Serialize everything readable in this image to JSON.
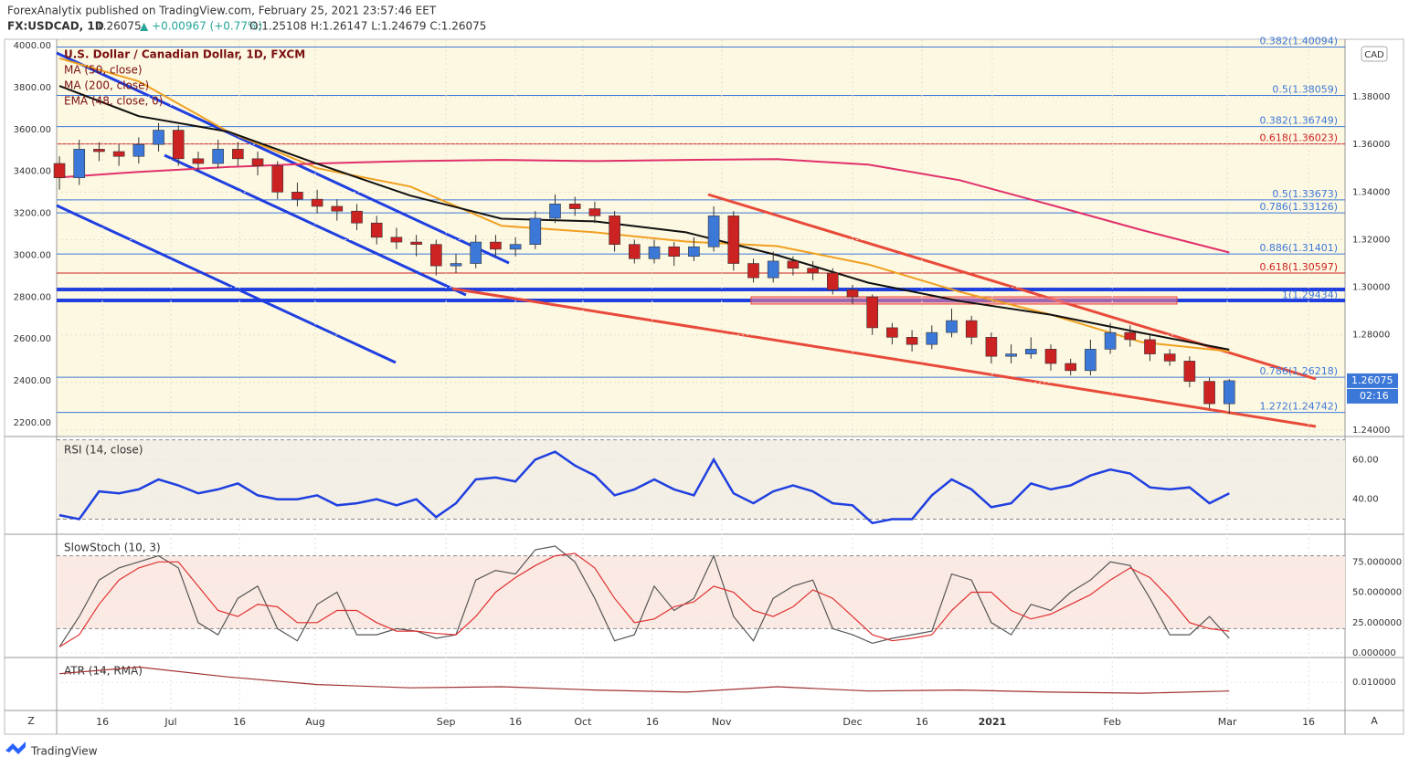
{
  "header": {
    "publisher": "ForexAnalytix published on TradingView.com, February 25, 2021 23:57:46 EET",
    "symbol": "FX:USDCAD, 1D",
    "last": "1.26075",
    "change": "▲ +0.00967 (+0.77%)",
    "ohlc": "O:1.25108 H:1.26147 L:1.24679 C:1.26075"
  },
  "price_panel": {
    "type": "candlestick",
    "title": "U.S. Dollar / Canadian Dollar, 1D, FXCM",
    "currency": "CAD",
    "last_label": "1.26075",
    "countdown": "02:16",
    "xlim": [
      -0.14,
      64.84
    ],
    "xticks": [
      {
        "value": 2.17,
        "label": "16"
      },
      {
        "value": 5.62,
        "label": "Jul"
      },
      {
        "value": 9.08,
        "label": "16"
      },
      {
        "value": 12.9,
        "label": "Aug"
      },
      {
        "value": 19.5,
        "label": "Sep"
      },
      {
        "value": 23.0,
        "label": "16"
      },
      {
        "value": 26.4,
        "label": "Oct"
      },
      {
        "value": 29.9,
        "label": "16"
      },
      {
        "value": 33.4,
        "label": "Nov"
      },
      {
        "value": 40.0,
        "label": "Dec"
      },
      {
        "value": 43.5,
        "label": "16"
      },
      {
        "value": 47.05,
        "label": "2021"
      },
      {
        "value": 53.1,
        "label": "Feb"
      },
      {
        "value": 58.9,
        "label": "Mar"
      },
      {
        "value": 63.0,
        "label": "16"
      }
    ],
    "ylim": [
      1.2377,
      1.4038
    ],
    "yticks": [
      {
        "value": 1.24,
        "label": "1.24000"
      },
      {
        "value": 1.26,
        "label": "1.26000"
      },
      {
        "value": 1.28,
        "label": "1.28000"
      },
      {
        "value": 1.3,
        "label": "1.30000"
      },
      {
        "value": 1.32,
        "label": "1.32000"
      },
      {
        "value": 1.34,
        "label": "1.34000"
      },
      {
        "value": 1.36,
        "label": "1.36000"
      },
      {
        "value": 1.38,
        "label": "1.38000"
      }
    ],
    "y2lim": [
      2139,
      4026
    ],
    "y2ticks": [
      {
        "value": 2200,
        "label": "2200.00"
      },
      {
        "value": 2400,
        "label": "2400.00"
      },
      {
        "value": 2600,
        "label": "2600.00"
      },
      {
        "value": 2800,
        "label": "2800.00"
      },
      {
        "value": 3000,
        "label": "3000.00"
      },
      {
        "value": 3200,
        "label": "3200.00"
      },
      {
        "value": 3400,
        "label": "3400.00"
      },
      {
        "value": 3600,
        "label": "3600.00"
      },
      {
        "value": 3800,
        "label": "3800.00"
      },
      {
        "value": 4000,
        "label": "4000.00"
      }
    ],
    "up_color": "#3c78d8",
    "down_color": "#cc2222",
    "open": [
      1.352,
      1.346,
      1.358,
      1.357,
      1.355,
      1.36,
      1.366,
      1.354,
      1.352,
      1.358,
      1.354,
      1.351,
      1.34,
      1.337,
      1.334,
      1.332,
      1.327,
      1.321,
      1.319,
      1.318,
      1.309,
      1.31,
      1.319,
      1.316,
      1.318,
      1.329,
      1.335,
      1.333,
      1.33,
      1.318,
      1.312,
      1.317,
      1.313,
      1.317,
      1.33,
      1.31,
      1.304,
      1.311,
      1.308,
      1.306,
      1.299,
      1.296,
      1.283,
      1.279,
      1.276,
      1.281,
      1.286,
      1.279,
      1.271,
      1.272,
      1.274,
      1.268,
      1.265,
      1.274,
      1.281,
      1.278,
      1.272,
      1.269,
      1.2605,
      1.25108
    ],
    "high": [
      1.355,
      1.362,
      1.361,
      1.36,
      1.363,
      1.369,
      1.368,
      1.357,
      1.362,
      1.361,
      1.357,
      1.353,
      1.344,
      1.341,
      1.337,
      1.335,
      1.33,
      1.325,
      1.322,
      1.32,
      1.314,
      1.322,
      1.322,
      1.321,
      1.332,
      1.339,
      1.338,
      1.336,
      1.332,
      1.32,
      1.32,
      1.319,
      1.321,
      1.334,
      1.332,
      1.312,
      1.315,
      1.313,
      1.311,
      1.308,
      1.301,
      1.297,
      1.285,
      1.282,
      1.284,
      1.291,
      1.288,
      1.281,
      1.276,
      1.279,
      1.276,
      1.27,
      1.278,
      1.285,
      1.284,
      1.28,
      1.274,
      1.271,
      1.262,
      1.26147
    ],
    "low": [
      1.341,
      1.343,
      1.353,
      1.351,
      1.352,
      1.357,
      1.351,
      1.349,
      1.35,
      1.351,
      1.347,
      1.337,
      1.334,
      1.331,
      1.328,
      1.324,
      1.318,
      1.316,
      1.313,
      1.305,
      1.306,
      1.308,
      1.313,
      1.313,
      1.316,
      1.327,
      1.33,
      1.327,
      1.315,
      1.31,
      1.31,
      1.309,
      1.311,
      1.315,
      1.307,
      1.302,
      1.302,
      1.305,
      1.303,
      1.297,
      1.293,
      1.28,
      1.276,
      1.273,
      1.274,
      1.279,
      1.276,
      1.268,
      1.268,
      1.27,
      1.265,
      1.263,
      1.263,
      1.272,
      1.275,
      1.269,
      1.267,
      1.258,
      1.249,
      1.24679
    ],
    "close": [
      1.346,
      1.358,
      1.357,
      1.355,
      1.36,
      1.366,
      1.354,
      1.352,
      1.358,
      1.354,
      1.351,
      1.34,
      1.337,
      1.334,
      1.332,
      1.327,
      1.321,
      1.319,
      1.318,
      1.309,
      1.31,
      1.319,
      1.316,
      1.318,
      1.329,
      1.335,
      1.333,
      1.33,
      1.318,
      1.312,
      1.317,
      1.313,
      1.317,
      1.33,
      1.31,
      1.304,
      1.311,
      1.308,
      1.306,
      1.299,
      1.296,
      1.283,
      1.279,
      1.276,
      1.281,
      1.286,
      1.279,
      1.271,
      1.272,
      1.274,
      1.268,
      1.265,
      1.274,
      1.281,
      1.278,
      1.272,
      1.269,
      1.2605,
      1.2511,
      1.26075
    ],
    "line_x": [
      0,
      4,
      8.5,
      13,
      17.7,
      22.3,
      27,
      31.6,
      36.2,
      40.8,
      45.4,
      50,
      54.6,
      59
    ],
    "lines": [
      {
        "name": "MA (50, close)",
        "color": "#f0a020",
        "values": [
          1.3962,
          1.3865,
          1.3654,
          1.35,
          1.3423,
          1.3258,
          1.3231,
          1.3192,
          1.3173,
          1.3096,
          1.2981,
          1.2885,
          1.2769,
          1.2731
        ]
      },
      {
        "name": "MA (200, close)",
        "color": "#e0306a",
        "values": [
          1.3462,
          1.3485,
          1.3505,
          1.352,
          1.353,
          1.3535,
          1.353,
          1.3535,
          1.3538,
          1.3515,
          1.345,
          1.3346,
          1.324,
          1.3146
        ]
      },
      {
        "name": "EMA (48, close, 0)",
        "color": "#111111",
        "values": [
          1.3846,
          1.3719,
          1.3654,
          1.3519,
          1.3385,
          1.3288,
          1.3277,
          1.3231,
          1.3135,
          1.3019,
          1.2942,
          1.2885,
          1.2808,
          1.2738
        ]
      }
    ],
    "levels": [
      {
        "label": "0.382(1.40094)",
        "value": 1.40094,
        "color": "#3c78d8"
      },
      {
        "label": "0.5(1.38059)",
        "value": 1.38059,
        "color": "#3c78d8"
      },
      {
        "label": "0.382(1.36749)",
        "value": 1.36749,
        "color": "#3c78d8"
      },
      {
        "label": "0.618(1.36023)",
        "value": 1.36023,
        "color": "#cc2222"
      },
      {
        "label": "0.5(1.33673)",
        "value": 1.33673,
        "color": "#3c78d8"
      },
      {
        "label": "0.786(1.33126)",
        "value": 1.33126,
        "color": "#3c78d8"
      },
      {
        "label": "0.886(1.31401)",
        "value": 1.31401,
        "color": "#3c78d8"
      },
      {
        "label": "0.618(1.30597)",
        "value": 1.30597,
        "color": "#cc2222"
      },
      {
        "label": "1(1.29434)",
        "value": 1.29434,
        "color": "#3c78d8"
      },
      {
        "label": "0.786(1.26218)",
        "value": 1.26218,
        "color": "#3c78d8"
      },
      {
        "label": "1.272(1.24742)",
        "value": 1.24742,
        "color": "#3c78d8"
      }
    ]
  },
  "rsi_panel": {
    "title": "RSI (14, close)",
    "ylim": [
      23.3,
      71.2
    ],
    "yticks": [
      {
        "value": 60,
        "label": "60.00"
      },
      {
        "value": 40,
        "label": "40.00"
      }
    ],
    "band": [
      30,
      70
    ],
    "color": "#1f3fe0",
    "values": [
      32,
      30,
      44,
      43,
      45,
      50,
      47,
      43,
      45,
      48,
      42,
      40,
      40,
      42,
      37,
      38,
      40,
      37,
      40,
      31,
      38,
      50,
      51,
      49,
      60,
      64,
      57,
      52,
      42,
      45,
      50,
      45,
      42,
      60,
      43,
      38,
      44,
      47,
      44,
      38,
      37,
      28,
      30,
      30,
      42,
      50,
      45,
      36,
      38,
      48,
      45,
      47,
      52,
      55,
      53,
      46,
      45,
      46,
      38,
      43
    ]
  },
  "stoch_panel": {
    "title": "SlowStoch (10, 3)",
    "ylim": [
      -3,
      97
    ],
    "yticks": [
      {
        "value": 75,
        "label": "75.000000"
      },
      {
        "value": 50,
        "label": "50.000000"
      },
      {
        "value": 25,
        "label": "25.000000"
      },
      {
        "value": 0,
        "label": "0.000000"
      }
    ],
    "band": [
      20,
      80
    ],
    "k_color": "#555555",
    "d_color": "#e03030",
    "k": [
      5,
      30,
      60,
      70,
      75,
      80,
      70,
      25,
      15,
      45,
      55,
      20,
      10,
      40,
      50,
      15,
      15,
      20,
      18,
      12,
      15,
      60,
      68,
      65,
      85,
      88,
      75,
      45,
      10,
      15,
      55,
      35,
      45,
      80,
      30,
      10,
      45,
      55,
      60,
      20,
      15,
      8,
      12,
      15,
      18,
      65,
      60,
      25,
      15,
      40,
      35,
      50,
      60,
      75,
      72,
      45,
      15,
      15,
      30,
      12
    ],
    "d": [
      5,
      15,
      40,
      60,
      70,
      75,
      75,
      55,
      35,
      30,
      40,
      38,
      25,
      25,
      35,
      35,
      25,
      18,
      18,
      16,
      15,
      30,
      50,
      62,
      72,
      80,
      82,
      70,
      45,
      25,
      28,
      38,
      42,
      55,
      50,
      35,
      30,
      38,
      52,
      45,
      30,
      15,
      10,
      12,
      15,
      35,
      50,
      50,
      35,
      28,
      32,
      40,
      48,
      60,
      70,
      62,
      45,
      25,
      20,
      18
    ]
  },
  "atr_panel": {
    "title": "ATR (14, RMA)",
    "ylim": [
      0.0075,
      0.0122
    ],
    "yticks": [
      {
        "value": 0.01,
        "label": "0.010000"
      }
    ],
    "color": "#a03030",
    "values": [
      0.0108,
      0.0114,
      0.0105,
      0.0098,
      0.0095,
      0.0096,
      0.0093,
      0.0091,
      0.0096,
      0.0092,
      0.0093,
      0.0091,
      0.009,
      0.0092
    ]
  },
  "footer": {
    "brand": "TradingView",
    "left_button": "Z",
    "right_button": "A"
  }
}
